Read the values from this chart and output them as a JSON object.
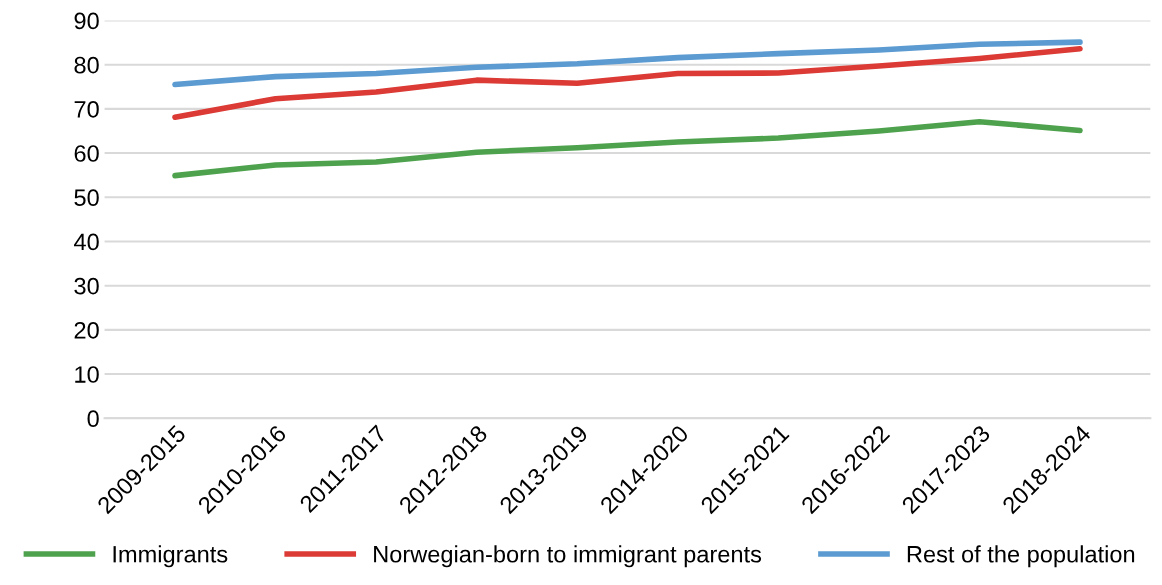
{
  "chart_data": {
    "type": "line",
    "categories": [
      "2009-2015",
      "2010-2016",
      "2011-2017",
      "2012-2018",
      "2013-2019",
      "2014-2020",
      "2015-2021",
      "2016-2022",
      "2017-2023",
      "2018-2024"
    ],
    "series": [
      {
        "name": "Immigrants",
        "color": "#4ea24e",
        "values": [
          54.9,
          57.3,
          58.0,
          60.2,
          61.2,
          62.5,
          63.4,
          65.0,
          67.1,
          65.1
        ]
      },
      {
        "name": "Norwegian-born to immigrant parents",
        "color": "#db3a35",
        "values": [
          68.1,
          72.3,
          73.8,
          76.5,
          75.8,
          78.0,
          78.1,
          79.7,
          81.4,
          83.6
        ]
      },
      {
        "name": "Rest of the population",
        "color": "#5b9bd1",
        "values": [
          75.5,
          77.3,
          78.0,
          79.4,
          80.2,
          81.6,
          82.5,
          83.3,
          84.6,
          85.1
        ]
      }
    ],
    "ylim": [
      0,
      90
    ],
    "yticks": [
      0,
      10,
      20,
      30,
      40,
      50,
      60,
      70,
      80,
      90
    ],
    "grid": "y",
    "legend": "bottom",
    "marker": "none",
    "line_style": "solid"
  }
}
